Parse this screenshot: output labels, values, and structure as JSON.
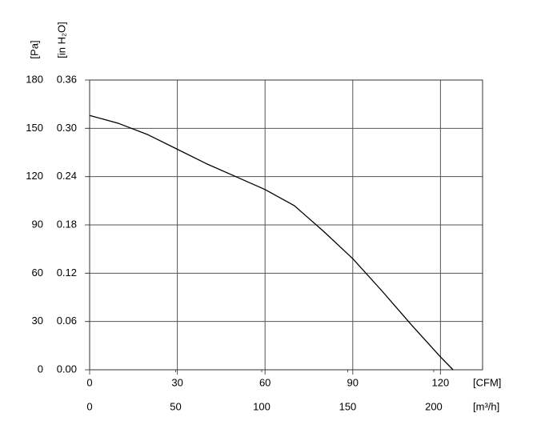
{
  "chart_data": {
    "type": "line",
    "ylabel": "[Pa]",
    "y2label": "[in H₂O]",
    "xlabel": "[CFM]",
    "x2label": "[m³/h]",
    "series": [
      {
        "color": "#000000",
        "x": [
          0,
          10,
          20,
          30,
          40,
          50,
          60,
          70,
          80,
          90,
          100,
          110,
          120,
          124.3
        ],
        "values": [
          158,
          153,
          146,
          137,
          128,
          120,
          112,
          102,
          86,
          69,
          49,
          28,
          8,
          0
        ]
      }
    ],
    "xlim": [
      0,
      134.4
    ],
    "xticks": [
      0,
      30,
      60,
      90,
      120
    ],
    "x2lim": [
      0,
      228.4
    ],
    "x2ticks": [
      0,
      50,
      100,
      150,
      200
    ],
    "ylim": [
      0,
      180
    ],
    "yticks": [
      0,
      30,
      60,
      90,
      120,
      150,
      180
    ],
    "y2lim": [
      0,
      0.36
    ],
    "y2ticks": [
      {
        "value": 0,
        "label": "0.00"
      },
      0.06,
      0.12,
      0.18,
      0.24,
      {
        "value": 0.3,
        "label": "0.30"
      },
      0.36
    ],
    "grid": true
  }
}
